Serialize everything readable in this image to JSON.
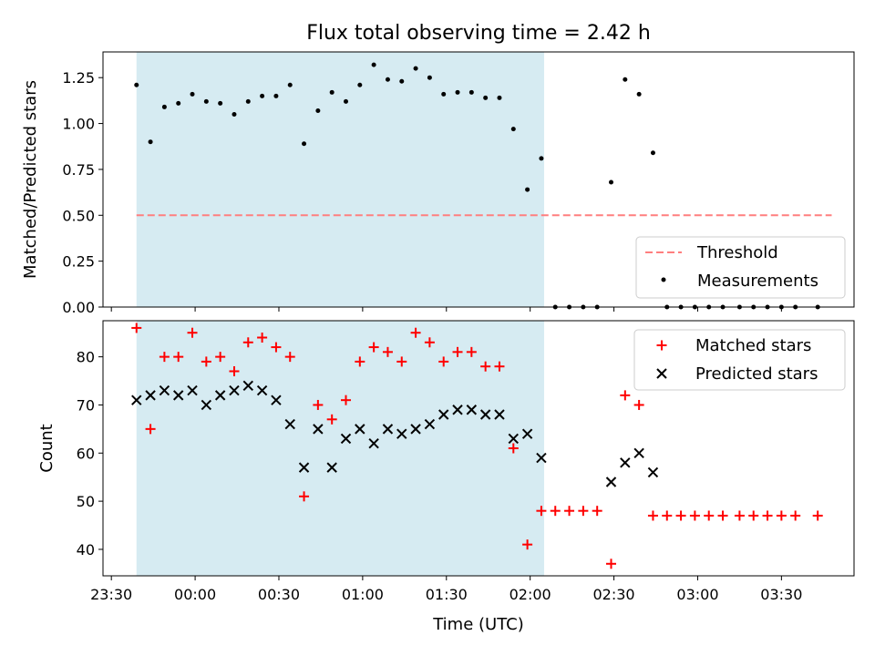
{
  "chart_data": {
    "type": "scatter",
    "title": "Flux total observing time = 2.42 h",
    "xlabel": "Time (UTC)",
    "x_ticks": [
      "23:30",
      "00:00",
      "00:30",
      "01:00",
      "01:30",
      "02:00",
      "02:30",
      "03:00",
      "03:30"
    ],
    "x_tick_minutes": [
      -30,
      0,
      30,
      60,
      90,
      120,
      150,
      180,
      210
    ],
    "xlim_minutes": [
      -33,
      236
    ],
    "shaded_region_minutes": [
      -21,
      125
    ],
    "colors": {
      "shade": "#add8e6",
      "threshold": "#ff7f7f",
      "measurements": "#000000",
      "matched": "#ff0000",
      "predicted": "#000000"
    },
    "top": {
      "ylabel": "Matched/Predicted stars",
      "ylim": [
        0,
        1.39
      ],
      "yticks": [
        "0.00",
        "0.25",
        "0.50",
        "0.75",
        "1.00",
        "1.25"
      ],
      "ytick_values": [
        0,
        0.25,
        0.5,
        0.75,
        1.0,
        1.25
      ],
      "legend_placement": "lower-right",
      "threshold": {
        "name": "Threshold",
        "value": 0.5,
        "x_range_minutes": [
          -21,
          228
        ]
      },
      "measurements": {
        "name": "Measurements",
        "points": [
          [
            -21,
            1.21
          ],
          [
            -16,
            0.9
          ],
          [
            -11,
            1.09
          ],
          [
            -6,
            1.11
          ],
          [
            -1,
            1.16
          ],
          [
            4,
            1.12
          ],
          [
            9,
            1.11
          ],
          [
            14,
            1.05
          ],
          [
            19,
            1.12
          ],
          [
            24,
            1.15
          ],
          [
            29,
            1.15
          ],
          [
            34,
            1.21
          ],
          [
            39,
            0.89
          ],
          [
            44,
            1.07
          ],
          [
            49,
            1.17
          ],
          [
            54,
            1.12
          ],
          [
            59,
            1.21
          ],
          [
            64,
            1.32
          ],
          [
            69,
            1.24
          ],
          [
            74,
            1.23
          ],
          [
            79,
            1.3
          ],
          [
            84,
            1.25
          ],
          [
            89,
            1.16
          ],
          [
            94,
            1.17
          ],
          [
            99,
            1.17
          ],
          [
            104,
            1.14
          ],
          [
            109,
            1.14
          ],
          [
            114,
            0.97
          ],
          [
            119,
            0.64
          ],
          [
            124,
            0.81
          ],
          [
            129,
            0.0
          ],
          [
            134,
            0.0
          ],
          [
            139,
            0.0
          ],
          [
            144,
            0.0
          ],
          [
            149,
            0.68
          ],
          [
            154,
            1.24
          ],
          [
            159,
            1.16
          ],
          [
            164,
            0.84
          ],
          [
            169,
            0.0
          ],
          [
            174,
            0.0
          ],
          [
            179,
            0.0
          ],
          [
            184,
            0.0
          ],
          [
            189,
            0.0
          ],
          [
            195,
            0.0
          ],
          [
            200,
            0.0
          ],
          [
            205,
            0.0
          ],
          [
            210,
            0.0
          ],
          [
            215,
            0.0
          ],
          [
            223,
            0.0
          ]
        ]
      }
    },
    "bottom": {
      "ylabel": "Count",
      "ylim": [
        34.5,
        87.5
      ],
      "yticks": [
        "40",
        "50",
        "60",
        "70",
        "80"
      ],
      "ytick_values": [
        40,
        50,
        60,
        70,
        80
      ],
      "legend_placement": "top-right",
      "series": [
        {
          "name": "Matched stars",
          "marker": "plus",
          "points": [
            [
              -21,
              86
            ],
            [
              -16,
              65
            ],
            [
              -11,
              80
            ],
            [
              -6,
              80
            ],
            [
              -1,
              85
            ],
            [
              4,
              79
            ],
            [
              9,
              80
            ],
            [
              14,
              77
            ],
            [
              19,
              83
            ],
            [
              24,
              84
            ],
            [
              29,
              82
            ],
            [
              34,
              80
            ],
            [
              39,
              51
            ],
            [
              44,
              70
            ],
            [
              49,
              67
            ],
            [
              54,
              71
            ],
            [
              59,
              79
            ],
            [
              64,
              82
            ],
            [
              69,
              81
            ],
            [
              74,
              79
            ],
            [
              79,
              85
            ],
            [
              84,
              83
            ],
            [
              89,
              79
            ],
            [
              94,
              81
            ],
            [
              99,
              81
            ],
            [
              104,
              78
            ],
            [
              109,
              78
            ],
            [
              114,
              61
            ],
            [
              119,
              41
            ],
            [
              124,
              48
            ],
            [
              129,
              48
            ],
            [
              134,
              48
            ],
            [
              139,
              48
            ],
            [
              144,
              48
            ],
            [
              149,
              37
            ],
            [
              154,
              72
            ],
            [
              159,
              70
            ],
            [
              164,
              47
            ],
            [
              169,
              47
            ],
            [
              174,
              47
            ],
            [
              179,
              47
            ],
            [
              184,
              47
            ],
            [
              189,
              47
            ],
            [
              195,
              47
            ],
            [
              200,
              47
            ],
            [
              205,
              47
            ],
            [
              210,
              47
            ],
            [
              215,
              47
            ],
            [
              223,
              47
            ]
          ]
        },
        {
          "name": "Predicted stars",
          "marker": "x",
          "points": [
            [
              -21,
              71
            ],
            [
              -16,
              72
            ],
            [
              -11,
              73
            ],
            [
              -6,
              72
            ],
            [
              -1,
              73
            ],
            [
              4,
              70
            ],
            [
              9,
              72
            ],
            [
              14,
              73
            ],
            [
              19,
              74
            ],
            [
              24,
              73
            ],
            [
              29,
              71
            ],
            [
              34,
              66
            ],
            [
              39,
              57
            ],
            [
              44,
              65
            ],
            [
              49,
              57
            ],
            [
              54,
              63
            ],
            [
              59,
              65
            ],
            [
              64,
              62
            ],
            [
              69,
              65
            ],
            [
              74,
              64
            ],
            [
              79,
              65
            ],
            [
              84,
              66
            ],
            [
              89,
              68
            ],
            [
              94,
              69
            ],
            [
              99,
              69
            ],
            [
              104,
              68
            ],
            [
              109,
              68
            ],
            [
              114,
              63
            ],
            [
              119,
              64
            ],
            [
              124,
              59
            ],
            [
              149,
              54
            ],
            [
              154,
              58
            ],
            [
              159,
              60
            ],
            [
              164,
              56
            ]
          ]
        }
      ]
    }
  }
}
